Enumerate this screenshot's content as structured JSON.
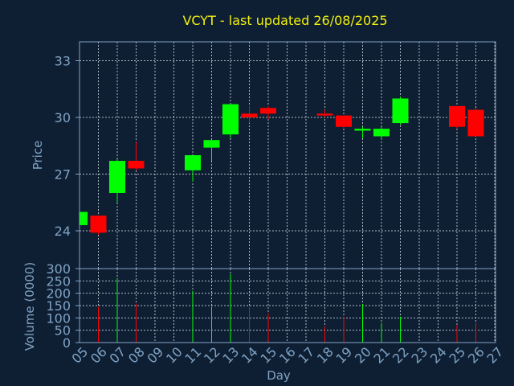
{
  "chart_data": {
    "type": "candlestick",
    "title": "VCYT - last updated 26/08/2025",
    "xlabel": "Day",
    "price_ylabel": "Price",
    "volume_ylabel": "Volume (0000)",
    "x_ticks": [
      "05",
      "06",
      "07",
      "08",
      "09",
      "10",
      "11",
      "12",
      "13",
      "14",
      "15",
      "16",
      "17",
      "18",
      "19",
      "20",
      "21",
      "22",
      "23",
      "24",
      "25",
      "26",
      "27"
    ],
    "price_yticks": [
      24,
      27,
      30,
      33
    ],
    "price_ylim": [
      22.0,
      34.0
    ],
    "volume_yticks": [
      0,
      50,
      100,
      150,
      200,
      250,
      300
    ],
    "volume_ylim": [
      0,
      300
    ],
    "grid": true,
    "up_color": "#00ff00",
    "down_color": "#ff0000",
    "candles": [
      {
        "day": 5,
        "open": 24.3,
        "high": 25.0,
        "low": 24.3,
        "close": 25.0,
        "volume": 0
      },
      {
        "day": 6,
        "open": 24.8,
        "high": 24.8,
        "low": 23.8,
        "close": 23.9,
        "volume": 145
      },
      {
        "day": 7,
        "open": 26.0,
        "high": 27.8,
        "low": 25.5,
        "close": 27.7,
        "volume": 262
      },
      {
        "day": 8,
        "open": 27.7,
        "high": 28.7,
        "low": 27.2,
        "close": 27.3,
        "volume": 158
      },
      {
        "day": 11,
        "open": 27.2,
        "high": 28.0,
        "low": 26.6,
        "close": 28.0,
        "volume": 210
      },
      {
        "day": 12,
        "open": 28.4,
        "high": 28.8,
        "low": 27.7,
        "close": 28.8,
        "volume": 145
      },
      {
        "day": 13,
        "open": 29.1,
        "high": 30.7,
        "low": 28.9,
        "close": 30.7,
        "volume": 278
      },
      {
        "day": 14,
        "open": 30.2,
        "high": 30.6,
        "low": 29.7,
        "close": 30.0,
        "volume": 145
      },
      {
        "day": 15,
        "open": 30.5,
        "high": 30.6,
        "low": 29.9,
        "close": 30.2,
        "volume": 118
      },
      {
        "day": 18,
        "open": 30.2,
        "high": 30.4,
        "low": 30.0,
        "close": 30.1,
        "volume": 65
      },
      {
        "day": 19,
        "open": 30.1,
        "high": 30.1,
        "low": 29.4,
        "close": 29.5,
        "volume": 105
      },
      {
        "day": 20,
        "open": 29.3,
        "high": 29.5,
        "low": 28.9,
        "close": 29.4,
        "volume": 155
      },
      {
        "day": 21,
        "open": 29.0,
        "high": 29.5,
        "low": 28.8,
        "close": 29.4,
        "volume": 80
      },
      {
        "day": 22,
        "open": 29.7,
        "high": 31.1,
        "low": 29.6,
        "close": 31.0,
        "volume": 105
      },
      {
        "day": 25,
        "open": 30.6,
        "high": 30.6,
        "low": 29.4,
        "close": 29.5,
        "volume": 70
      },
      {
        "day": 26,
        "open": 30.4,
        "high": 30.5,
        "low": 29.0,
        "close": 29.0,
        "volume": 78
      }
    ]
  }
}
